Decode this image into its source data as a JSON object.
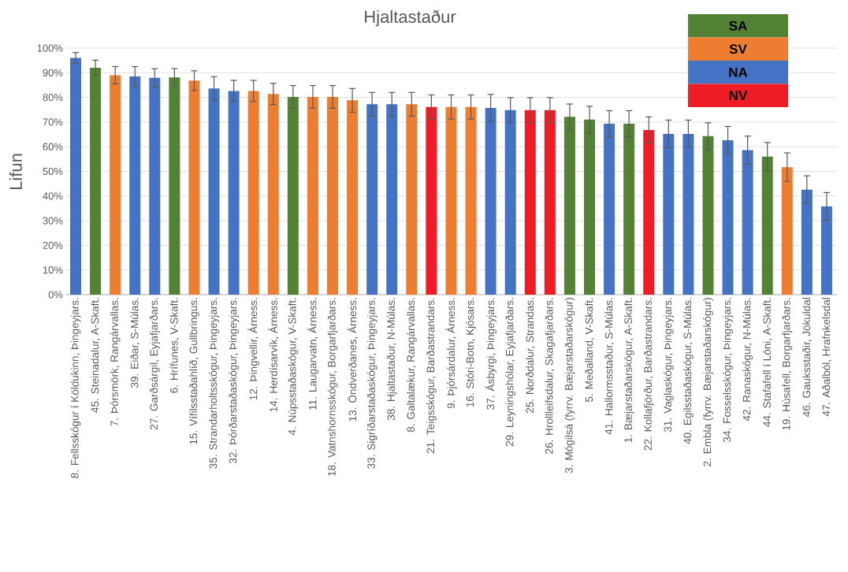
{
  "chart_data": {
    "type": "bar",
    "title": "Hjaltastaður",
    "ylabel": "Lifun",
    "categories": [
      "8. Fellsskógur í Köldukinn, Þingeyjars.",
      "45. Steinadalur, A-Skaft.",
      "7. Þórsmörk, Rangárvallas.",
      "39. Eiðar, S-Múlas.",
      "27. Garðsárgil, Eyjafjarðars.",
      "6. Hrífunes, V-Skaft.",
      "15. Vífilsstaðahlíð, Gullbringus.",
      "35. Strandarholtsskógur, Þingeyjars.",
      "32. Þórðarstaðaskógur, Þingeyjars.",
      "12. Þingvellir, Árness.",
      "14. Herdísarvík, Árness.",
      "4. Núpsstaðaskógur, V-Skaft.",
      "11. Laugarvatn, Árness.",
      "18. Vatnshornsskógur, Borgarfjarðars.",
      "13. Öndverðanes, Árness.",
      "33. Sigríðarstaðaskógur, Þingeyjars.",
      "38. Hjaltastaður, N-Múlas.",
      "8. Galtalækur, Rangárvallas.",
      "21. Teigsskógur, Barðastrandars.",
      "9. Þjórsárdalur, Árness.",
      "16. Stóri-Botn, Kjósars.",
      "37. Ásbyrgi, Þingeyjars.",
      "29. Leyningshólar, Eyjafjarðars.",
      "25. Norðdalur, Strandas.",
      "26. Hrollleifsdalur, Skagafjarðars.",
      "3. Mógilsá (fyrrv. Bæjarstaðarskógur)",
      "5. Meðalland, V-Skaft.",
      "41. Hallormsstaður, S-Múlas.",
      "1. Bæjarstaðarskógur, A-Skaft.",
      "22. Kollafjörður, Barðastrandars.",
      "31. Vaglaskógur, Þingeyjars.",
      "40. Egilsstaðaskógur, S-Múlas.",
      "2. Embla (fyrrv. Bæjarstaðarskógur)",
      "34. Fosselsskógur, Þingeyjars.",
      "42. Ranaskógur, N-Múlas.",
      "44. Stafafell í Lóni, A-Skaft.",
      "19. Húsafell, Borgarfjarðars.",
      "46. Gauksstaðir, Jökuldal",
      "47. Aðalból, Hrafnkelsdal"
    ],
    "series": [
      {
        "name": "SA",
        "color": "#548235",
        "values": [
          null,
          92.0,
          null,
          null,
          null,
          88.1,
          null,
          null,
          null,
          null,
          null,
          80.2,
          null,
          null,
          null,
          null,
          null,
          null,
          null,
          null,
          null,
          null,
          null,
          null,
          null,
          72.1,
          71.0,
          null,
          69.3,
          null,
          null,
          null,
          64.3,
          null,
          null,
          56.0,
          null,
          null,
          null
        ],
        "errors": [
          null,
          3.1,
          null,
          null,
          null,
          3.6,
          null,
          null,
          null,
          null,
          null,
          4.6,
          null,
          null,
          null,
          null,
          null,
          null,
          null,
          null,
          null,
          null,
          null,
          null,
          null,
          5.2,
          5.4,
          null,
          5.3,
          null,
          null,
          null,
          5.4,
          null,
          null,
          5.7,
          null,
          null,
          null
        ]
      },
      {
        "name": "SV",
        "color": "#ed7d31",
        "values": [
          null,
          null,
          89.0,
          null,
          null,
          null,
          86.8,
          null,
          null,
          82.6,
          81.4,
          null,
          80.2,
          80.2,
          78.8,
          null,
          null,
          77.2,
          null,
          76.1,
          76.1,
          null,
          null,
          null,
          null,
          null,
          null,
          null,
          null,
          null,
          null,
          null,
          null,
          null,
          null,
          null,
          51.7,
          null,
          null
        ],
        "errors": [
          null,
          null,
          3.5,
          null,
          null,
          null,
          4.0,
          null,
          null,
          4.3,
          4.3,
          null,
          4.6,
          4.6,
          4.8,
          null,
          null,
          4.8,
          null,
          4.9,
          4.9,
          null,
          null,
          null,
          null,
          null,
          null,
          null,
          null,
          null,
          null,
          null,
          null,
          null,
          null,
          null,
          5.8,
          null,
          null
        ]
      },
      {
        "name": "NA",
        "color": "#4472c4",
        "values": [
          96.0,
          null,
          null,
          88.5,
          87.9,
          null,
          null,
          83.6,
          82.6,
          null,
          null,
          null,
          null,
          null,
          null,
          77.2,
          77.2,
          null,
          null,
          null,
          null,
          75.7,
          74.8,
          null,
          null,
          null,
          null,
          69.3,
          null,
          null,
          65.2,
          65.2,
          null,
          62.6,
          58.6,
          null,
          null,
          42.6,
          35.8
        ],
        "errors": [
          2.2,
          null,
          null,
          4.0,
          3.7,
          null,
          null,
          4.8,
          4.3,
          null,
          null,
          null,
          null,
          null,
          null,
          4.8,
          4.8,
          null,
          null,
          null,
          null,
          5.5,
          5.1,
          null,
          null,
          null,
          null,
          5.3,
          null,
          null,
          5.6,
          5.6,
          null,
          5.6,
          5.7,
          null,
          null,
          5.6,
          5.6
        ]
      },
      {
        "name": "NV",
        "color": "#ee1c25",
        "values": [
          null,
          null,
          null,
          null,
          null,
          null,
          null,
          null,
          null,
          null,
          null,
          null,
          null,
          null,
          null,
          null,
          null,
          null,
          76.1,
          null,
          null,
          null,
          null,
          74.8,
          74.8,
          null,
          null,
          null,
          null,
          66.8,
          null,
          null,
          null,
          null,
          null,
          null,
          null,
          null,
          null
        ],
        "errors": [
          null,
          null,
          null,
          null,
          null,
          null,
          null,
          null,
          null,
          null,
          null,
          null,
          null,
          null,
          null,
          null,
          null,
          null,
          4.9,
          null,
          null,
          null,
          null,
          5.1,
          5.1,
          null,
          null,
          null,
          null,
          5.3,
          null,
          null,
          null,
          null,
          null,
          null,
          null,
          null,
          null
        ]
      }
    ],
    "ylim": [
      0,
      100
    ],
    "yticks": [
      {
        "value": 0,
        "label": "0%"
      },
      {
        "value": 10,
        "label": "10%"
      },
      {
        "value": 20,
        "label": "20%"
      },
      {
        "value": 30,
        "label": "30%"
      },
      {
        "value": 40,
        "label": "40%"
      },
      {
        "value": 50,
        "label": "50%"
      },
      {
        "value": 60,
        "label": "60%"
      },
      {
        "value": 70,
        "label": "70%"
      },
      {
        "value": 80,
        "label": "80%"
      },
      {
        "value": 90,
        "label": "90%"
      },
      {
        "value": 100,
        "label": "100%"
      }
    ],
    "grid": "y",
    "legend": "top right"
  }
}
